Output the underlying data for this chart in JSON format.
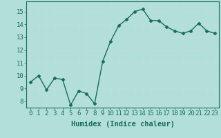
{
  "x": [
    0,
    1,
    2,
    3,
    4,
    5,
    6,
    7,
    8,
    9,
    10,
    11,
    12,
    13,
    14,
    15,
    16,
    17,
    18,
    19,
    20,
    21,
    22,
    23
  ],
  "y": [
    9.5,
    10.0,
    8.9,
    9.8,
    9.7,
    7.7,
    8.8,
    8.6,
    7.8,
    11.1,
    12.7,
    13.9,
    14.4,
    15.0,
    15.2,
    14.3,
    14.3,
    13.8,
    13.5,
    13.3,
    13.5,
    14.1,
    13.5,
    13.3
  ],
  "line_color": "#1a6b5a",
  "bg_color": "#b2e0d8",
  "grid_major_color": "#d8ecea",
  "grid_minor_color": "#c8e4e0",
  "xlabel": "Humidex (Indice chaleur)",
  "ylim": [
    7.5,
    15.8
  ],
  "xlim": [
    -0.5,
    23.5
  ],
  "yticks": [
    8,
    9,
    10,
    11,
    12,
    13,
    14,
    15
  ],
  "xticks": [
    0,
    1,
    2,
    3,
    4,
    5,
    6,
    7,
    8,
    9,
    10,
    11,
    12,
    13,
    14,
    15,
    16,
    17,
    18,
    19,
    20,
    21,
    22,
    23
  ],
  "marker": "D",
  "marker_size": 2.5,
  "line_width": 1.0,
  "xlabel_fontsize": 7.5,
  "tick_fontsize": 6.5
}
